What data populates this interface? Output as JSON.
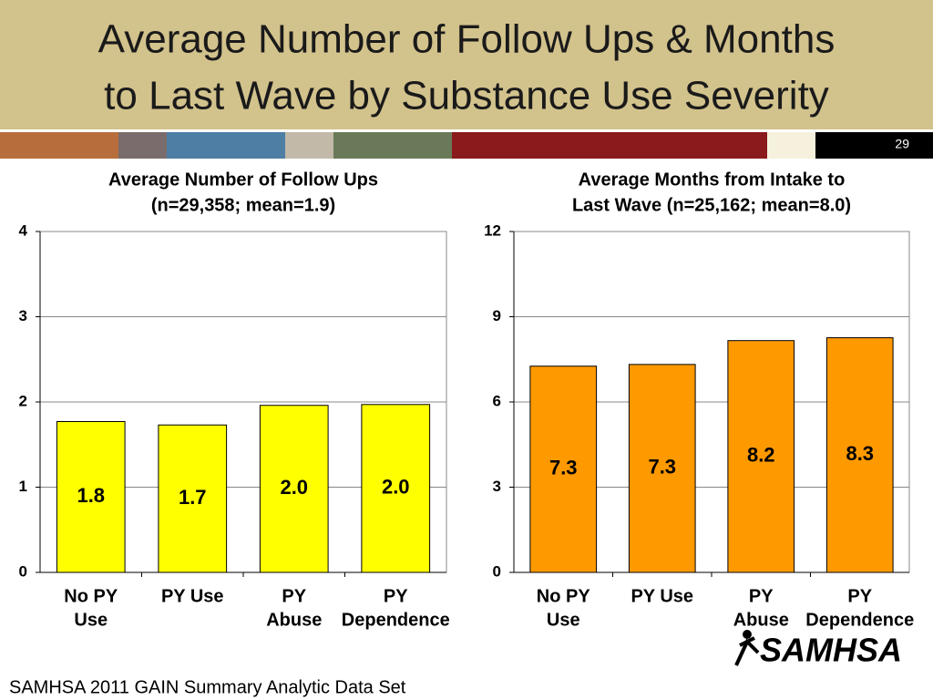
{
  "header": {
    "title": [
      "Average Number of Follow Ups & Months",
      "to Last Wave by Substance Use Severity"
    ],
    "slide_number": "29"
  },
  "footer": "SAMHSA 2011 GAIN Summary Analytic Data Set",
  "logo": "SAMHSA",
  "chart_data": [
    {
      "type": "bar",
      "title": [
        "Average Number of Follow Ups",
        "(n=29,358; mean=1.9)"
      ],
      "categories": [
        [
          "No PY",
          "Use"
        ],
        [
          "PY Use"
        ],
        [
          "PY",
          "Abuse"
        ],
        [
          "PY",
          "Dependence"
        ]
      ],
      "values": [
        1.77,
        1.73,
        1.96,
        1.97
      ],
      "value_labels": [
        "1.8",
        "1.7",
        "2.0",
        "2.0"
      ],
      "color": "#ffff00",
      "ylim": [
        0,
        4
      ],
      "yticks": [
        0,
        1,
        2,
        3,
        4
      ],
      "grid": true
    },
    {
      "type": "bar",
      "title": [
        "Average Months from Intake to",
        "Last Wave (n=25,162; mean=8.0)"
      ],
      "categories": [
        [
          "No PY",
          "Use"
        ],
        [
          "PY Use"
        ],
        [
          "PY",
          "Abuse"
        ],
        [
          "PY",
          "Dependence"
        ]
      ],
      "values": [
        7.26,
        7.32,
        8.16,
        8.26
      ],
      "value_labels": [
        "7.3",
        "7.3",
        "8.2",
        "8.3"
      ],
      "color": "#ff9900",
      "ylim": [
        0,
        12
      ],
      "yticks": [
        0,
        3,
        6,
        9,
        12
      ],
      "grid": true
    }
  ]
}
